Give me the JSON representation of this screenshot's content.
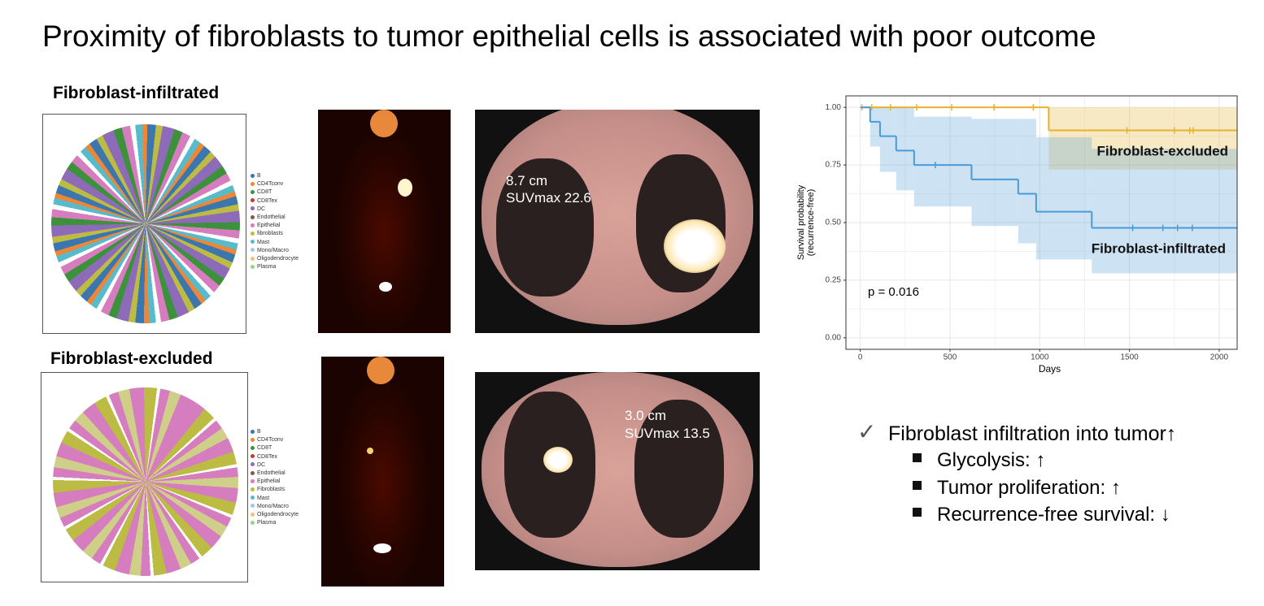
{
  "title": "Proximity of fibroblasts to tumor epithelial cells is associated with poor outcome",
  "panels": [
    {
      "label": "Fibroblast-infiltrated",
      "legend": [
        {
          "label": "B",
          "color": "#3b76af"
        },
        {
          "label": "CD4Tconv",
          "color": "#ef8636"
        },
        {
          "label": "CD8T",
          "color": "#3b923a"
        },
        {
          "label": "CD8Tex",
          "color": "#c53932"
        },
        {
          "label": "DC",
          "color": "#8e6bb8"
        },
        {
          "label": "Endothelial",
          "color": "#85584e"
        },
        {
          "label": "Epithelial",
          "color": "#d57dbe"
        },
        {
          "label": "fibroblasts",
          "color": "#bcbc45"
        },
        {
          "label": "Mast",
          "color": "#58bbcc"
        },
        {
          "label": "Mono/Macro",
          "color": "#a9c5e6"
        },
        {
          "label": "Oligodendrocyte",
          "color": "#f3be7f"
        },
        {
          "label": "Plasma",
          "color": "#9bd28a"
        }
      ],
      "annotation": [
        "8.7 cm",
        "SUVmax 22.6"
      ]
    },
    {
      "label": "Fibroblast-excluded",
      "legend": [
        {
          "label": "B",
          "color": "#3b76af"
        },
        {
          "label": "CD4Tconv",
          "color": "#ef8636"
        },
        {
          "label": "CD8T",
          "color": "#3b923a"
        },
        {
          "label": "CD8Tex",
          "color": "#c53932"
        },
        {
          "label": "DC",
          "color": "#8e6bb8"
        },
        {
          "label": "Endothelial",
          "color": "#85584e"
        },
        {
          "label": "Epithelial",
          "color": "#d57dbe"
        },
        {
          "label": "Fibroblasts",
          "color": "#bcbc45"
        },
        {
          "label": "Mast",
          "color": "#58bbcc"
        },
        {
          "label": "Mono/Macro",
          "color": "#a9c5e6"
        },
        {
          "label": "Oligodendrocyte",
          "color": "#f3be7f"
        },
        {
          "label": "Plasma",
          "color": "#9bd28a"
        }
      ],
      "annotation": [
        "3.0 cm",
        "SUVmax 13.5"
      ]
    }
  ],
  "chart_data": {
    "type": "step",
    "xlabel": "Days",
    "ylabel": [
      "Survival probability",
      "(recurrence-free)"
    ],
    "annotation": "p = 0.016",
    "xlim": [
      -80,
      2100
    ],
    "ylim": [
      -0.05,
      1.05
    ],
    "xticks": [
      0,
      500,
      1000,
      1500,
      2000
    ],
    "yticks": [
      {
        "value": 0,
        "label": "0.00"
      },
      {
        "value": 0.25,
        "label": "0.25"
      },
      {
        "value": 0.5,
        "label": "0.50"
      },
      {
        "value": 0.75,
        "label": "0.75"
      },
      {
        "value": 1,
        "label": "1.00"
      }
    ],
    "grid": true,
    "series": [
      {
        "name": "Fibroblast-excluded",
        "color": "#e6b12f",
        "x": [
          0,
          1050
        ],
        "values": [
          1,
          0.9
        ],
        "lower": [
          1,
          0.73
        ],
        "upper": [
          1,
          1
        ],
        "censor_x": [
          9,
          64,
          168,
          314,
          509,
          745,
          964,
          1486,
          1750,
          1836,
          1855
        ],
        "censor_y": [
          1,
          1,
          1,
          1,
          1,
          1,
          1,
          0.9,
          0.9,
          0.9,
          0.9
        ]
      },
      {
        "name": "Fibroblast-infiltrated",
        "color": "#4a9ad6",
        "x": [
          0,
          55,
          110,
          200,
          300,
          620,
          880,
          980,
          1290
        ],
        "values": [
          1,
          0.9375,
          0.875,
          0.8125,
          0.75,
          0.6875,
          0.625,
          0.547,
          0.477
        ],
        "lower": [
          1,
          0.83,
          0.72,
          0.64,
          0.57,
          0.485,
          0.41,
          0.34,
          0.28
        ],
        "upper": [
          1,
          1,
          1,
          1,
          0.96,
          0.95,
          0.95,
          0.87,
          0.82
        ],
        "censor_x": [
          418,
          1518,
          1686,
          1768,
          1850
        ],
        "censor_y": [
          0.75,
          0.477,
          0.477,
          0.477,
          0.477
        ]
      }
    ]
  },
  "bullets": {
    "main": "Fibroblast infiltration into tumor↑",
    "items": [
      "Glycolysis: ↑",
      "Tumor proliferation: ↑",
      "Recurrence-free survival: ↓"
    ]
  }
}
